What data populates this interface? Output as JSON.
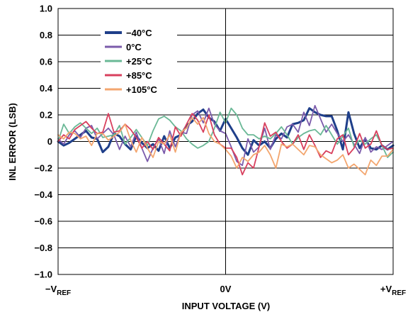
{
  "chart_data": {
    "type": "line",
    "xlabel": "INPUT VOLTAGE (V)",
    "ylabel": "INL ERROR (LSB)",
    "ylim": [
      -1.0,
      1.0
    ],
    "xlim": [
      0,
      60
    ],
    "grid": "horizontal",
    "legend_position": "top-left",
    "x_ticks": [
      {
        "x": 0,
        "main": "−V",
        "sub": "REF"
      },
      {
        "x": 30,
        "main": "0V",
        "sub": ""
      },
      {
        "x": 60,
        "main": "+V",
        "sub": "REF"
      }
    ],
    "y_ticks": [
      {
        "value": 1.0,
        "label": "1.0"
      },
      {
        "value": 0.8,
        "label": "0.8"
      },
      {
        "value": 0.6,
        "label": "0.6"
      },
      {
        "value": 0.4,
        "label": "0.4"
      },
      {
        "value": 0.2,
        "label": "0.2"
      },
      {
        "value": 0,
        "label": "0"
      },
      {
        "value": -0.2,
        "label": "−0.2"
      },
      {
        "value": -0.4,
        "label": "−0.4"
      },
      {
        "value": -0.6,
        "label": "−0.6"
      },
      {
        "value": -0.8,
        "label": "−0.8"
      },
      {
        "value": -1.0,
        "label": "−1.0"
      }
    ],
    "x": [
      0,
      1,
      2,
      3,
      4,
      5,
      6,
      7,
      8,
      9,
      10,
      11,
      12,
      13,
      14,
      15,
      16,
      17,
      18,
      19,
      20,
      21,
      22,
      23,
      24,
      25,
      26,
      27,
      28,
      29,
      30,
      31,
      32,
      33,
      34,
      35,
      36,
      37,
      38,
      39,
      40,
      41,
      42,
      43,
      44,
      45,
      46,
      47,
      48,
      49,
      50,
      51,
      52,
      53,
      54,
      55,
      56,
      57,
      58,
      59,
      60
    ],
    "series": [
      {
        "name": "−40°C",
        "color": "#1f3f8a",
        "values": [
          0,
          -0.03,
          -0.01,
          0.02,
          0.05,
          0.08,
          0.03,
          0.02,
          -0.08,
          -0.04,
          0.06,
          0.04,
          -0.02,
          -0.06,
          0.04,
          -0.01,
          -0.05,
          -0.02,
          -0.07,
          0.04,
          -0.05,
          0.03,
          0.05,
          0.12,
          0.15,
          0.21,
          0.24,
          0.18,
          0.15,
          0.08,
          0.17,
          0.1,
          0.03,
          -0.05,
          -0.1,
          0.01,
          -0.03,
          0,
          -0.05,
          0.02,
          0.06,
          0.03,
          0.13,
          0.14,
          0.16,
          0.25,
          0.22,
          0.2,
          0.19,
          0.19,
          0.08,
          -0.06,
          0.22,
          0.06,
          -0.05,
          0.02,
          -0.05,
          -0.06,
          -0.03,
          -0.06,
          -0.03
        ]
      },
      {
        "name": "0°C",
        "color": "#7b5bab",
        "values": [
          0.02,
          -0.02,
          0.05,
          0.08,
          0.03,
          0.1,
          0.12,
          0.02,
          0.06,
          0.1,
          0.05,
          -0.06,
          0.04,
          -0.04,
          0.07,
          -0.05,
          -0.15,
          -0.05,
          0.02,
          -0.09,
          0.08,
          -0.04,
          0.07,
          0.06,
          0.2,
          0.23,
          0.14,
          0.25,
          0.13,
          0.08,
          0.06,
          -0.04,
          -0.15,
          -0.18,
          0.02,
          -0.08,
          -0.04,
          0.1,
          -0.06,
          0.05,
          0.02,
          0.11,
          0.13,
          0.07,
          0.22,
          0.12,
          0.27,
          0.17,
          0.07,
          0.13,
          0.06,
          0,
          0.05,
          -0.02,
          -0.09,
          0.03,
          -0.08,
          -0.04,
          -0.06,
          -0.03,
          0
        ]
      },
      {
        "name": "+25°C",
        "color": "#6ab896",
        "values": [
          0,
          0.13,
          0.06,
          0.11,
          0.14,
          0.1,
          0.06,
          0.1,
          0.03,
          0.04,
          0.05,
          0.12,
          -0.02,
          0.03,
          0.09,
          0.03,
          -0.03,
          0.08,
          0.17,
          0.19,
          0.16,
          0.11,
          0.08,
          0.02,
          -0.02,
          -0.05,
          -0.03,
          0,
          0.1,
          0.22,
          0.14,
          0.25,
          0.2,
          0.1,
          0.05,
          0.05,
          0.02,
          0.04,
          0.02,
          0.06,
          0.11,
          0.05,
          -0.02,
          0.03,
          0.06,
          0.08,
          0.09,
          0.05,
          0.12,
          0.05,
          -0.02,
          0.04,
          0.1,
          -0.04,
          0.01,
          -0.02,
          0.02,
          0.05,
          -0.03,
          -0.12,
          -0.08
        ]
      },
      {
        "name": "+85°C",
        "color": "#d8405e",
        "values": [
          0,
          0.05,
          0.02,
          0.09,
          0.12,
          0.15,
          0.1,
          0.06,
          0.07,
          0.21,
          0.07,
          0.08,
          0.13,
          0.09,
          0.03,
          -0.05,
          0,
          -0.06,
          0.03,
          -0.02,
          -0.07,
          0.11,
          0.04,
          0.13,
          0.21,
          0.16,
          0.07,
          0.2,
          0.05,
          -0.02,
          -0.05,
          -0.05,
          -0.12,
          -0.25,
          -0.16,
          -0.2,
          -0.04,
          0.14,
          0.04,
          0.07,
          0,
          -0.05,
          -0.02,
          0.05,
          -0.06,
          0.05,
          -0.03,
          -0.12,
          -0.07,
          -0.09,
          0.02,
          0.05,
          -0.1,
          -0.05,
          0.06,
          -0.05,
          -0.02,
          0.08,
          -0.03,
          -0.06,
          -0.05
        ]
      },
      {
        "name": "+105°C",
        "color": "#f3a66f",
        "values": [
          0.05,
          0.02,
          0.07,
          0.06,
          0.02,
          0.04,
          -0.03,
          0.06,
          0.06,
          0.01,
          0.04,
          0.07,
          0.13,
          0.01,
          -0.08,
          0.03,
          -0.05,
          -0.12,
          0,
          -0.02,
          0.05,
          -0.08,
          0.07,
          0.1,
          0.18,
          0.13,
          0.18,
          0.06,
          0,
          -0.02,
          -0.06,
          -0.11,
          -0.2,
          -0.12,
          -0.15,
          -0.1,
          -0.08,
          -0.03,
          -0.1,
          -0.2,
          -0.02,
          -0.04,
          -0.02,
          -0.06,
          -0.1,
          -0.03,
          -0.04,
          -0.1,
          -0.13,
          -0.16,
          -0.14,
          -0.1,
          -0.2,
          -0.17,
          -0.21,
          -0.25,
          -0.14,
          -0.18,
          -0.11,
          -0.11,
          -0.06
        ]
      }
    ]
  }
}
